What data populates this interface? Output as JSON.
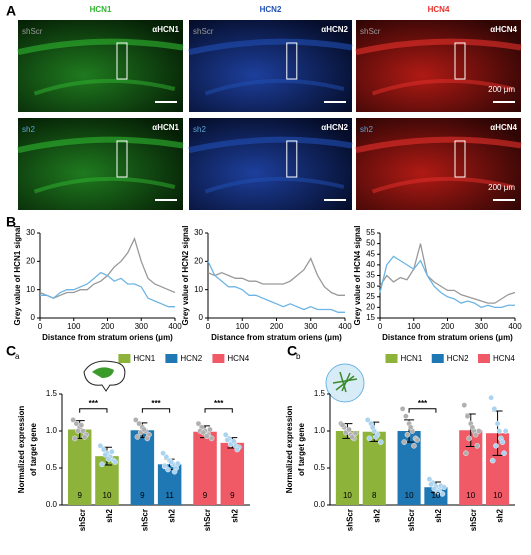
{
  "panel_labels": [
    "A",
    "B",
    "C",
    "a",
    "C",
    "b"
  ],
  "panel_a": {
    "columns": [
      {
        "title": "HCN1",
        "color": "#2fb52f",
        "antibody": "αHCN1"
      },
      {
        "title": "HCN2",
        "color": "#1f4fb4",
        "antibody": "αHCN2"
      },
      {
        "title": "HCN4",
        "color": "#e8302b",
        "antibody": "αHCN4"
      }
    ],
    "rows": [
      {
        "label": "shScr",
        "color": "#9a9a9a"
      },
      {
        "label": "sh2",
        "color": "#5aa6d6"
      }
    ],
    "scale": "200 μm"
  },
  "chart_data": [
    {
      "type": "line",
      "ylabel": "Grey value of HCN1 signal",
      "xlabel": "Distance from stratum oriens (μm)",
      "xlim": [
        0,
        400
      ],
      "xticks": [
        0,
        100,
        200,
        300,
        400
      ],
      "ylim": [
        0,
        30
      ],
      "yticks": [
        0,
        10,
        20,
        30
      ],
      "x": [
        0,
        20,
        40,
        60,
        80,
        100,
        120,
        140,
        160,
        180,
        200,
        220,
        240,
        260,
        280,
        300,
        320,
        340,
        360,
        380,
        400
      ],
      "series": [
        {
          "color": "#999999",
          "values": [
            9,
            8,
            7,
            8,
            9,
            9,
            10,
            10,
            12,
            13,
            15,
            18,
            20,
            23,
            28,
            20,
            14,
            12,
            11,
            10,
            9
          ]
        },
        {
          "color": "#6cb4e4",
          "values": [
            8,
            8,
            7,
            9,
            10,
            10,
            11,
            12,
            14,
            16,
            15,
            13,
            14,
            12,
            12,
            11,
            7,
            6,
            5,
            4,
            4
          ]
        }
      ]
    },
    {
      "type": "line",
      "ylabel": "Grey value of HCN2 signal",
      "xlabel": "Distance from stratum oriens (μm)",
      "xlim": [
        0,
        400
      ],
      "xticks": [
        0,
        100,
        200,
        300,
        400
      ],
      "ylim": [
        0,
        30
      ],
      "yticks": [
        0,
        10,
        20,
        30
      ],
      "x": [
        0,
        20,
        40,
        60,
        80,
        100,
        120,
        140,
        160,
        180,
        200,
        220,
        240,
        260,
        280,
        300,
        320,
        340,
        360,
        380,
        400
      ],
      "series": [
        {
          "color": "#999999",
          "values": [
            16,
            15,
            16,
            15,
            14,
            14,
            13,
            13,
            12,
            12,
            12,
            12,
            13,
            15,
            17,
            21,
            15,
            11,
            9,
            8,
            8
          ]
        },
        {
          "color": "#6cb4e4",
          "values": [
            20,
            15,
            13,
            11,
            11,
            10,
            8,
            8,
            7,
            6,
            5,
            4,
            5,
            4,
            3,
            4,
            3,
            3,
            3,
            2,
            2
          ]
        }
      ]
    },
    {
      "type": "line",
      "ylabel": "Grey value of HCN4 signal",
      "xlabel": "Distance from stratum oriens (μm)",
      "xlim": [
        0,
        400
      ],
      "xticks": [
        0,
        100,
        200,
        300,
        400
      ],
      "ylim": [
        15,
        55
      ],
      "yticks": [
        15,
        20,
        25,
        30,
        35,
        40,
        45,
        50,
        55
      ],
      "x": [
        0,
        20,
        40,
        60,
        80,
        100,
        120,
        140,
        160,
        180,
        200,
        220,
        240,
        260,
        280,
        300,
        320,
        340,
        360,
        380,
        400
      ],
      "series": [
        {
          "color": "#999999",
          "values": [
            30,
            35,
            32,
            34,
            33,
            38,
            50,
            35,
            32,
            30,
            28,
            28,
            26,
            25,
            24,
            23,
            22,
            22,
            24,
            26,
            27
          ]
        },
        {
          "color": "#6cb4e4",
          "values": [
            27,
            40,
            44,
            42,
            40,
            38,
            42,
            35,
            30,
            27,
            25,
            24,
            22,
            23,
            22,
            20,
            21,
            20,
            20,
            21,
            21
          ]
        }
      ]
    },
    {
      "type": "bar",
      "ylabel": [
        "Normalized expression",
        "of target gene"
      ],
      "ylim": [
        0,
        1.5
      ],
      "yticks": [
        {
          "value": 0,
          "label": "0.0"
        },
        {
          "value": 0.5,
          "label": "0.5"
        },
        {
          "value": 1,
          "label": "1.0"
        },
        {
          "value": 1.5,
          "label": "1.5"
        }
      ],
      "categories": [
        "shScr",
        "sh2"
      ],
      "point_colors": [
        "#b0b0b0",
        "#a9d3ee"
      ],
      "series": [
        {
          "name": "HCN1",
          "color": "#8db33a",
          "values": [
            1.02,
            0.66
          ],
          "errors": [
            0.12,
            0.12
          ],
          "n": [
            9,
            10
          ],
          "significance": "***",
          "points": [
            [
              1.15,
              1.1,
              1.05,
              1.0,
              0.95,
              0.9,
              1.0,
              1.08,
              0.92
            ],
            [
              0.8,
              0.75,
              0.7,
              0.65,
              0.6,
              0.55,
              0.68,
              0.62,
              0.72,
              0.58
            ]
          ]
        },
        {
          "name": "HCN2",
          "color": "#1f78b4",
          "values": [
            1.01,
            0.55
          ],
          "errors": [
            0.1,
            0.07
          ],
          "n": [
            9,
            11
          ],
          "significance": "***",
          "points": [
            [
              1.15,
              1.1,
              1.05,
              1.0,
              0.95,
              0.92,
              0.98,
              1.02,
              0.9
            ],
            [
              0.7,
              0.65,
              0.6,
              0.55,
              0.5,
              0.52,
              0.48,
              0.58,
              0.45,
              0.56,
              0.53
            ]
          ]
        },
        {
          "name": "HCN4",
          "color": "#ef5a66",
          "values": [
            0.99,
            0.84
          ],
          "errors": [
            0.08,
            0.07
          ],
          "n": [
            9,
            9
          ],
          "significance": "***",
          "points": [
            [
              1.1,
              1.05,
              1.0,
              0.95,
              0.9,
              1.0,
              0.98,
              0.93,
              1.02
            ],
            [
              0.95,
              0.9,
              0.85,
              0.8,
              0.78,
              0.88,
              0.82,
              0.86,
              0.75
            ]
          ]
        }
      ]
    },
    {
      "type": "bar",
      "ylabel": [
        "Normalized expression",
        "of target gene"
      ],
      "ylim": [
        0,
        1.5
      ],
      "yticks": [
        {
          "value": 0,
          "label": "0.0"
        },
        {
          "value": 0.5,
          "label": "0.5"
        },
        {
          "value": 1,
          "label": "1.0"
        },
        {
          "value": 1.5,
          "label": "1.5"
        }
      ],
      "categories": [
        "shScr",
        "sh2"
      ],
      "point_colors": [
        "#b0b0b0",
        "#a9d3ee"
      ],
      "series": [
        {
          "name": "HCN1",
          "color": "#8db33a",
          "values": [
            1.0,
            0.99
          ],
          "errors": [
            0.1,
            0.13
          ],
          "n": [
            10,
            8
          ],
          "significance": null,
          "points": [
            [
              1.1,
              1.05,
              1.0,
              0.95,
              0.9,
              1.08,
              0.98,
              1.02,
              0.92,
              0.97
            ],
            [
              1.15,
              1.1,
              1.0,
              0.95,
              0.85,
              0.9,
              1.05,
              0.92
            ]
          ]
        },
        {
          "name": "HCN2",
          "color": "#1f78b4",
          "values": [
            1.0,
            0.24
          ],
          "errors": [
            0.15,
            0.07
          ],
          "n": [
            10,
            10
          ],
          "significance": "***",
          "points": [
            [
              1.3,
              1.2,
              1.1,
              1.0,
              0.9,
              0.85,
              0.95,
              1.05,
              0.8,
              0.88
            ],
            [
              0.35,
              0.3,
              0.25,
              0.2,
              0.15,
              0.28,
              0.22,
              0.18,
              0.26,
              0.24
            ]
          ]
        },
        {
          "name": "HCN4",
          "color": "#ef5a66",
          "values": [
            1.01,
            0.97
          ],
          "errors": [
            0.22,
            0.3
          ],
          "n": [
            10,
            10
          ],
          "significance": null,
          "points": [
            [
              1.35,
              1.2,
              1.1,
              1.0,
              0.8,
              0.7,
              0.9,
              1.05,
              0.95,
              1.0
            ],
            [
              1.45,
              1.3,
              1.1,
              0.9,
              0.7,
              0.6,
              0.8,
              1.0,
              0.85,
              1.0
            ]
          ]
        }
      ]
    }
  ]
}
